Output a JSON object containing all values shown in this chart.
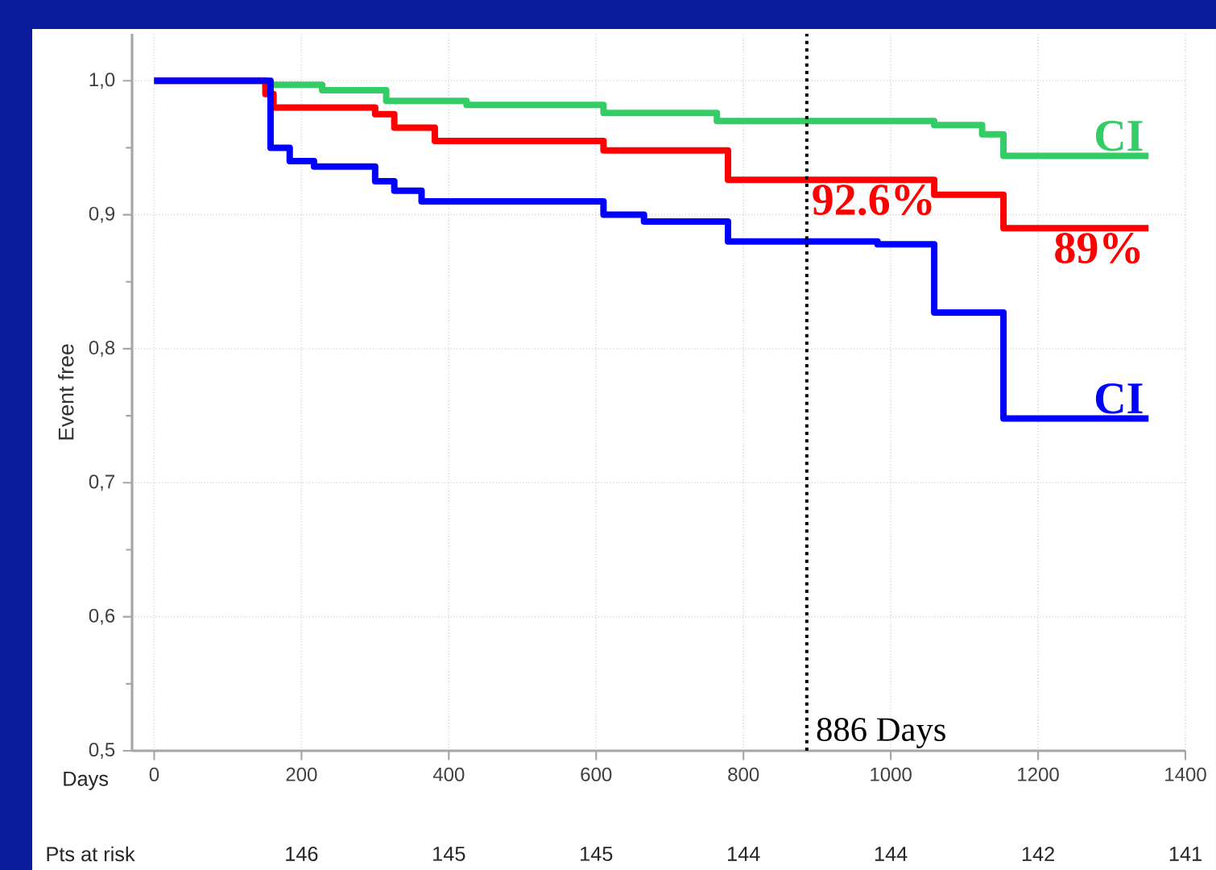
{
  "chart_data": {
    "type": "step",
    "xlabel": "Days",
    "ylabel": "Event free",
    "xlim": [
      -30,
      1400
    ],
    "ylim": [
      0.5,
      1.035
    ],
    "xticks": [
      0,
      200,
      400,
      600,
      800,
      1000,
      1200,
      1400
    ],
    "yticks": [
      {
        "value": 0.5,
        "label": "0,5"
      },
      {
        "value": 0.6,
        "label": "0,6"
      },
      {
        "value": 0.7,
        "label": "0,7"
      },
      {
        "value": 0.8,
        "label": "0,8"
      },
      {
        "value": 0.9,
        "label": "0,9"
      },
      {
        "value": 1.0,
        "label": "1,0"
      }
    ],
    "grid": true,
    "legend": false,
    "marker": "none",
    "line_style": "solid",
    "series": [
      {
        "name": "CI",
        "color": "#33cc66",
        "x": [
          0,
          151,
          228,
          315,
          424,
          610,
          764,
          1059,
          1124,
          1153,
          1350
        ],
        "values": [
          1.0,
          0.997,
          0.993,
          0.985,
          0.982,
          0.976,
          0.97,
          0.967,
          0.96,
          0.944,
          0.944
        ]
      },
      {
        "color": "#ff0000",
        "x": [
          0,
          151,
          162,
          300,
          326,
          381,
          610,
          779,
          1059,
          1153,
          1350
        ],
        "values": [
          1.0,
          0.99,
          0.98,
          0.975,
          0.965,
          0.955,
          0.948,
          0.926,
          0.915,
          0.89,
          0.89
        ]
      },
      {
        "name": "CI",
        "color": "#0000ff",
        "x": [
          0,
          158,
          184,
          217,
          300,
          326,
          363,
          610,
          665,
          779,
          982,
          1059,
          1153,
          1350
        ],
        "values": [
          1.0,
          0.95,
          0.94,
          0.936,
          0.925,
          0.918,
          0.91,
          0.9,
          0.895,
          0.88,
          0.878,
          0.827,
          0.748,
          0.748
        ]
      }
    ],
    "ref_lines": [
      {
        "axis": "x",
        "value": 886,
        "label": "886 Days",
        "color": "#000000",
        "line_style": "dotted"
      }
    ],
    "annotations": [
      {
        "text": "92.6%",
        "x": 886,
        "y": 0.926
      },
      {
        "text": "89%",
        "x": 1350,
        "y": 0.89
      },
      "Pts at risk",
      "146",
      "145",
      "145",
      "144",
      "144",
      "142",
      "141"
    ]
  }
}
